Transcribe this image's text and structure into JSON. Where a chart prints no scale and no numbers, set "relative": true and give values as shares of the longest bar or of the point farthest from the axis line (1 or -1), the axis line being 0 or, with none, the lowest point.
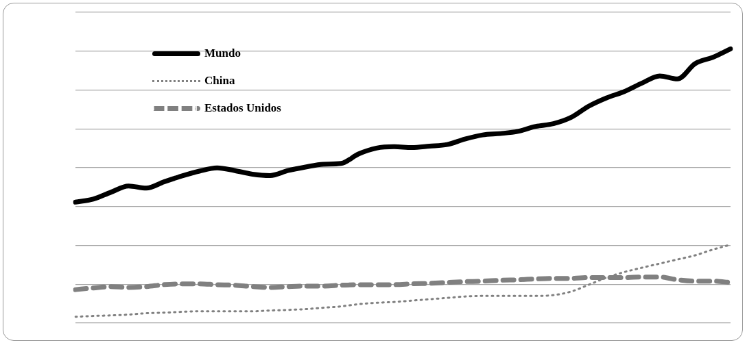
{
  "chart_data": {
    "type": "line",
    "relative": true,
    "grid": "y",
    "legend": "top left",
    "tick_labels": false,
    "categories": [
      null,
      null,
      null,
      null,
      null,
      null,
      null,
      null,
      null,
      null,
      null,
      null,
      null,
      null,
      null,
      null,
      null,
      null,
      null,
      null,
      null,
      null,
      null,
      null,
      null,
      null,
      null,
      null,
      null,
      null,
      null,
      null,
      null,
      null,
      null,
      null,
      null,
      null
    ],
    "series": [
      {
        "name": "Mundo",
        "color": "#000000",
        "line_style": "solid",
        "values": [
          0.441,
          0.452,
          0.477,
          0.5,
          0.492,
          0.515,
          0.536,
          0.554,
          0.566,
          0.556,
          0.543,
          0.538,
          0.556,
          0.569,
          0.579,
          0.582,
          0.617,
          0.638,
          0.643,
          0.64,
          0.645,
          0.651,
          0.671,
          0.686,
          0.691,
          0.699,
          0.717,
          0.727,
          0.75,
          0.791,
          0.821,
          0.844,
          0.875,
          0.901,
          0.89,
          0.946,
          0.969,
          1
        ]
      },
      {
        "name": "China",
        "color": "#808080",
        "line_style": "dotted",
        "values": [
          0.023,
          0.026,
          0.028,
          0.031,
          0.036,
          0.038,
          0.041,
          0.043,
          0.043,
          0.043,
          0.043,
          0.046,
          0.048,
          0.051,
          0.056,
          0.061,
          0.069,
          0.074,
          0.077,
          0.082,
          0.087,
          0.092,
          0.097,
          0.099,
          0.099,
          0.099,
          0.099,
          0.102,
          0.115,
          0.14,
          0.166,
          0.186,
          0.202,
          0.217,
          0.232,
          0.247,
          0.268,
          0.286
        ]
      },
      {
        "name": "Estados Unidos",
        "color": "#808080",
        "line_style": "dashed",
        "values": [
          0.122,
          0.128,
          0.133,
          0.13,
          0.133,
          0.14,
          0.143,
          0.143,
          0.14,
          0.138,
          0.133,
          0.13,
          0.133,
          0.135,
          0.135,
          0.138,
          0.14,
          0.14,
          0.14,
          0.143,
          0.145,
          0.148,
          0.151,
          0.153,
          0.156,
          0.158,
          0.161,
          0.163,
          0.163,
          0.166,
          0.166,
          0.166,
          0.168,
          0.168,
          0.158,
          0.153,
          0.153,
          0.148
        ]
      }
    ]
  }
}
